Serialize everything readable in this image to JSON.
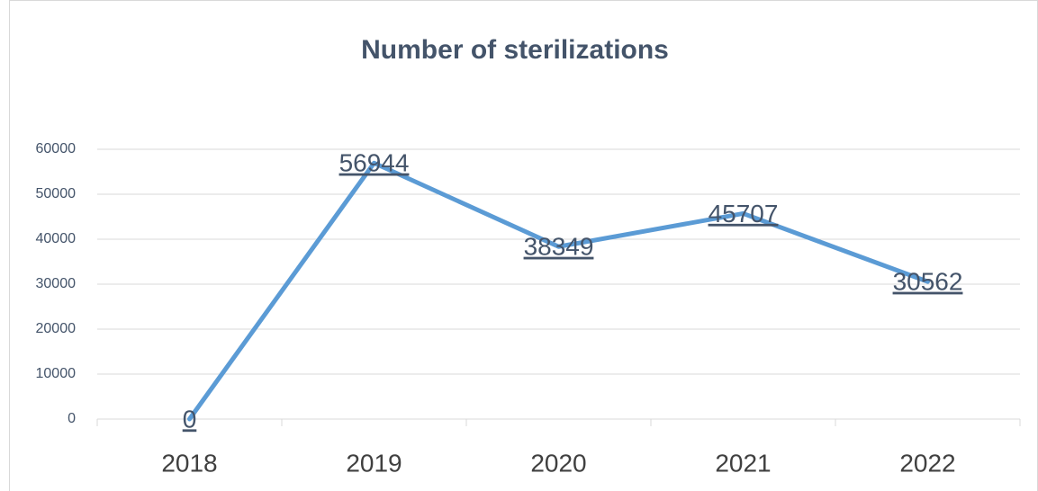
{
  "chart_data": {
    "type": "line",
    "title": "Number of sterilizations",
    "categories": [
      "2018",
      "2019",
      "2020",
      "2021",
      "2022"
    ],
    "values": [
      0,
      56944,
      38349,
      45707,
      30562
    ],
    "color": "#5b9bd5",
    "ylim": [
      0,
      60000
    ],
    "yticks": [
      0,
      10000,
      20000,
      30000,
      40000,
      50000,
      60000
    ],
    "grid": true
  }
}
